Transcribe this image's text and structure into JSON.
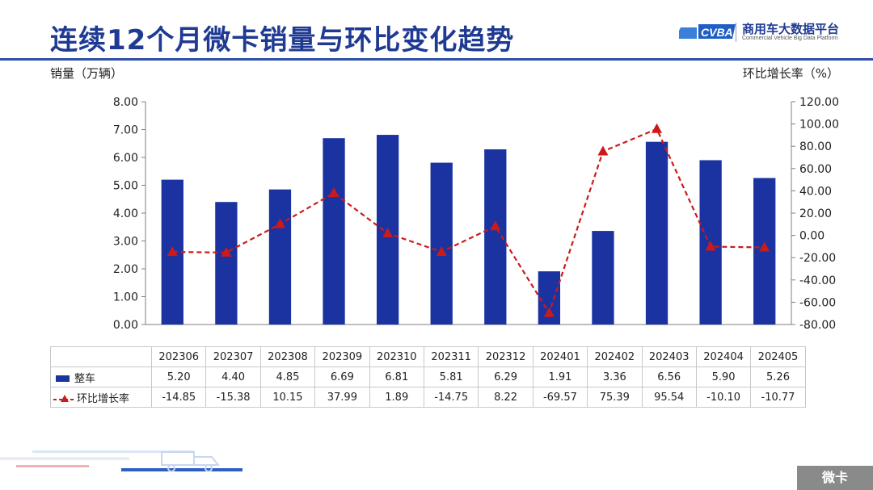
{
  "page": {
    "title": "连续12个月微卡销量与环比变化趋势",
    "corner_tag": "微卡",
    "logo": {
      "name": "商用车大数据平台",
      "subtitle": "Commercial Vehicle Big Data Platform",
      "mark": "CVBA"
    }
  },
  "colors": {
    "bar": "#1a33a0",
    "line": "#cc1a1a",
    "title": "#1f3a93",
    "grid": "#bfbfbf"
  },
  "chart_data": {
    "type": "bar+line",
    "categories": [
      "202306",
      "202307",
      "202308",
      "202309",
      "202310",
      "202311",
      "202312",
      "202401",
      "202402",
      "202403",
      "202404",
      "202405"
    ],
    "series": [
      {
        "name": "整车",
        "type": "bar",
        "axis": "left",
        "values": [
          5.2,
          4.4,
          4.85,
          6.69,
          6.81,
          5.81,
          6.29,
          1.91,
          3.36,
          6.56,
          5.9,
          5.26
        ],
        "labels": [
          "5.20",
          "4.40",
          "4.85",
          "6.69",
          "6.81",
          "5.81",
          "6.29",
          "1.91",
          "3.36",
          "6.56",
          "5.90",
          "5.26"
        ]
      },
      {
        "name": "环比增长率",
        "type": "line",
        "axis": "right",
        "style": "dashed",
        "marker": "triangle",
        "values": [
          -14.85,
          -15.38,
          10.15,
          37.99,
          1.89,
          -14.75,
          8.22,
          -69.57,
          75.39,
          95.54,
          -10.1,
          -10.77
        ],
        "labels": [
          "-14.85",
          "-15.38",
          "10.15",
          "37.99",
          "1.89",
          "-14.75",
          "8.22",
          "-69.57",
          "75.39",
          "95.54",
          "-10.10",
          "-10.77"
        ]
      }
    ],
    "ylabel": "销量（万辆）",
    "y2label": "环比增长率（%）",
    "ylim": [
      0,
      8
    ],
    "y2lim": [
      -80,
      120
    ],
    "yticks": [
      "0.00",
      "1.00",
      "2.00",
      "3.00",
      "4.00",
      "5.00",
      "6.00",
      "7.00",
      "8.00"
    ],
    "y2ticks": [
      "-80.00",
      "-60.00",
      "-40.00",
      "-20.00",
      "0.00",
      "20.00",
      "40.00",
      "60.00",
      "80.00",
      "100.00",
      "120.00"
    ],
    "grid": false,
    "legend": "table-bottom"
  }
}
